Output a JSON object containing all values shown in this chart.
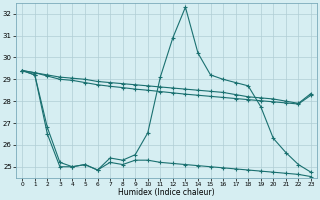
{
  "xlabel": "Humidex (Indice chaleur)",
  "background_color": "#d6eef2",
  "grid_color": "#b0cdd5",
  "line_color": "#1a7070",
  "xlim": [
    -0.5,
    23.5
  ],
  "ylim": [
    24.5,
    32.5
  ],
  "yticks": [
    25,
    26,
    27,
    28,
    29,
    30,
    31,
    32
  ],
  "xticks": [
    0,
    1,
    2,
    3,
    4,
    5,
    6,
    7,
    8,
    9,
    10,
    11,
    12,
    13,
    14,
    15,
    16,
    17,
    18,
    19,
    20,
    21,
    22,
    23
  ],
  "line1_x": [
    0,
    1,
    2,
    3,
    4,
    5,
    6,
    7,
    8,
    9,
    10,
    11,
    12,
    13,
    14,
    15,
    16,
    17,
    18,
    19,
    20,
    21,
    22,
    23
  ],
  "line1_y": [
    29.4,
    29.3,
    29.2,
    29.1,
    29.05,
    29.0,
    28.9,
    28.85,
    28.8,
    28.75,
    28.7,
    28.65,
    28.6,
    28.55,
    28.5,
    28.45,
    28.4,
    28.3,
    28.2,
    28.15,
    28.1,
    28.0,
    27.9,
    28.35
  ],
  "line2_x": [
    0,
    1,
    2,
    3,
    4,
    5,
    6,
    7,
    8,
    9,
    10,
    11,
    12,
    13,
    14,
    15,
    16,
    17,
    18,
    19,
    20,
    21,
    22,
    23
  ],
  "line2_y": [
    29.4,
    29.3,
    29.15,
    29.0,
    28.95,
    28.85,
    28.75,
    28.68,
    28.62,
    28.55,
    28.5,
    28.44,
    28.38,
    28.32,
    28.27,
    28.22,
    28.17,
    28.12,
    28.07,
    28.02,
    27.97,
    27.92,
    27.87,
    28.27
  ],
  "line3_x": [
    0,
    1,
    2,
    3,
    4,
    5,
    6,
    7,
    8,
    9,
    10,
    11,
    12,
    13,
    14,
    15,
    16,
    17,
    18,
    19,
    20,
    21,
    22,
    23
  ],
  "line3_y": [
    29.4,
    29.2,
    26.8,
    25.2,
    25.0,
    25.1,
    24.85,
    25.4,
    25.3,
    25.55,
    26.55,
    29.1,
    30.9,
    32.3,
    30.2,
    29.2,
    29.0,
    28.85,
    28.7,
    27.75,
    26.3,
    25.65,
    25.1,
    24.75
  ],
  "line4_x": [
    0,
    1,
    2,
    3,
    4,
    5,
    6,
    7,
    8,
    9,
    10,
    11,
    12,
    13,
    14,
    15,
    16,
    17,
    18,
    19,
    20,
    21,
    22,
    23
  ],
  "line4_y": [
    29.4,
    29.2,
    26.5,
    25.0,
    25.0,
    25.1,
    24.85,
    25.2,
    25.1,
    25.3,
    25.3,
    25.2,
    25.15,
    25.1,
    25.05,
    25.0,
    24.95,
    24.9,
    24.85,
    24.8,
    24.75,
    24.7,
    24.65,
    24.55
  ]
}
